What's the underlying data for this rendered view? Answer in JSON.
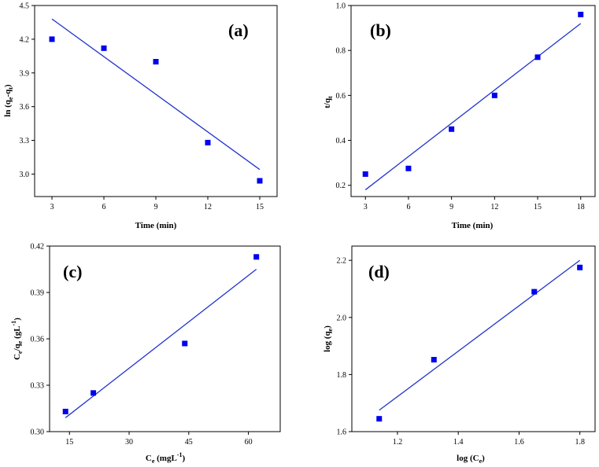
{
  "chart_data": [
    {
      "type": "scatter",
      "panel_label": "(a)",
      "xlabel": "Time (min)",
      "ylabel_main": "ln (q",
      "ylabel_sub1": "e",
      "ylabel_mid": "-q",
      "ylabel_sub2": "t",
      "ylabel_end": ")",
      "xlim": [
        2,
        16
      ],
      "ylim": [
        2.8,
        4.5
      ],
      "xticks": [
        3,
        6,
        9,
        12,
        15
      ],
      "yticks": [
        3.0,
        3.3,
        3.6,
        3.9,
        4.2,
        4.5
      ],
      "x": [
        3,
        6,
        9,
        12,
        15
      ],
      "y": [
        4.2,
        4.12,
        4.0,
        3.28,
        2.94
      ],
      "fit_line": {
        "x": [
          3,
          15
        ],
        "y": [
          4.38,
          3.04
        ]
      },
      "marker_color": "#0000ee",
      "line_color": "#2233cc"
    },
    {
      "type": "scatter",
      "panel_label": "(b)",
      "xlabel": "Time (min)",
      "ylabel_main": "t/q",
      "ylabel_sub1": "t",
      "ylabel_mid": "",
      "ylabel_sub2": "",
      "ylabel_end": "",
      "xlim": [
        2,
        19
      ],
      "ylim": [
        0.15,
        1.0
      ],
      "xticks": [
        3,
        6,
        9,
        12,
        15,
        18
      ],
      "yticks": [
        0.2,
        0.4,
        0.6,
        0.8,
        1.0
      ],
      "x": [
        3,
        6,
        9,
        12,
        15,
        18
      ],
      "y": [
        0.25,
        0.275,
        0.45,
        0.6,
        0.77,
        0.96
      ],
      "fit_line": {
        "x": [
          3,
          18
        ],
        "y": [
          0.18,
          0.92
        ]
      },
      "marker_color": "#0000ee",
      "line_color": "#2233cc"
    },
    {
      "type": "scatter",
      "panel_label": "(c)",
      "xlabel_main": "C",
      "xlabel_sub": "e",
      "xlabel_end": " (mgL",
      "xlabel_sup": "-1",
      "xlabel_close": ")",
      "ylabel_main": "C",
      "ylabel_sub1": "e",
      "ylabel_mid": "/q",
      "ylabel_sub2": "e",
      "ylabel_end": " (gL",
      "ylabel_sup": "-1",
      "ylabel_close": ")",
      "xlim": [
        10,
        68
      ],
      "ylim": [
        0.3,
        0.42
      ],
      "xticks": [
        15,
        30,
        45,
        60
      ],
      "yticks": [
        0.3,
        0.33,
        0.36,
        0.39,
        0.42
      ],
      "x": [
        14,
        21,
        44,
        62
      ],
      "y": [
        0.313,
        0.325,
        0.357,
        0.413
      ],
      "fit_line": {
        "x": [
          14,
          62
        ],
        "y": [
          0.309,
          0.405
        ]
      },
      "marker_color": "#0000ee",
      "line_color": "#2233cc"
    },
    {
      "type": "scatter",
      "panel_label": "(d)",
      "xlabel_main": "log (C",
      "xlabel_sub": "e",
      "xlabel_end": ")",
      "ylabel_main": "log (q",
      "ylabel_sub1": "e",
      "ylabel_mid": ")",
      "ylabel_sub2": "",
      "ylabel_end": "",
      "xlim": [
        1.05,
        1.85
      ],
      "ylim": [
        1.6,
        2.25
      ],
      "xticks": [
        1.2,
        1.4,
        1.6,
        1.8
      ],
      "yticks": [
        1.6,
        1.8,
        2.0,
        2.2
      ],
      "x": [
        1.14,
        1.32,
        1.65,
        1.8
      ],
      "y": [
        1.645,
        1.852,
        2.09,
        2.175
      ],
      "fit_line": {
        "x": [
          1.14,
          1.8
        ],
        "y": [
          1.675,
          2.2
        ]
      },
      "marker_color": "#0000ee",
      "line_color": "#2233cc"
    }
  ]
}
